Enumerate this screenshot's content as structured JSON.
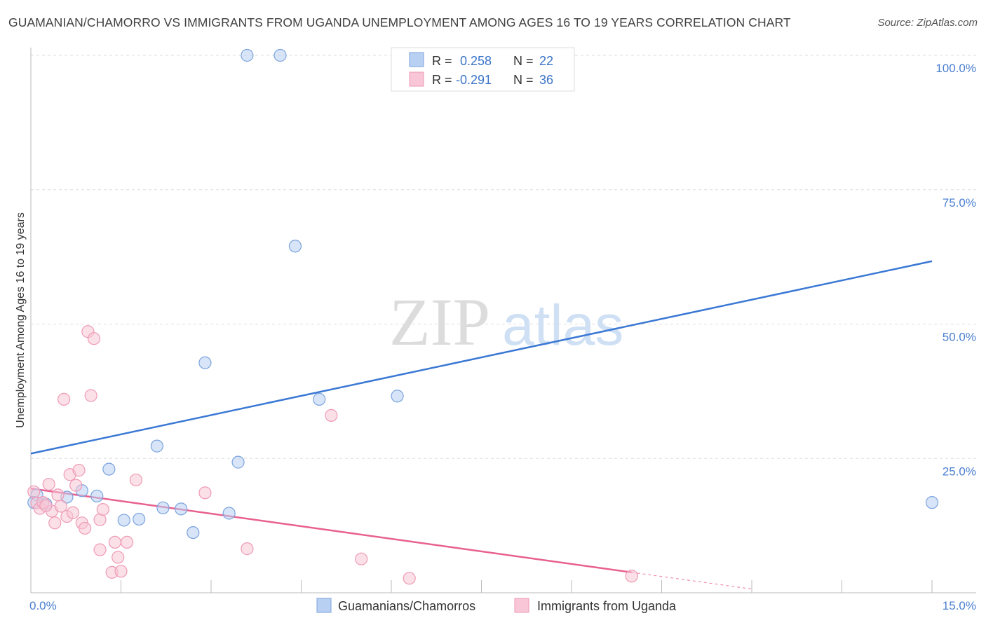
{
  "title": "GUAMANIAN/CHAMORRO VS IMMIGRANTS FROM UGANDA UNEMPLOYMENT AMONG AGES 16 TO 19 YEARS CORRELATION CHART",
  "source": "Source: ZipAtlas.com",
  "watermark": {
    "zip": "ZIP",
    "atlas": "atlas"
  },
  "colors": {
    "blue": "#3a78d4",
    "blue_fill": "#b8d0f2",
    "pink": "#e86090",
    "pink_fill": "#f8c6d6",
    "grid": "#dddddd",
    "tick_text": "#4a7fd0"
  },
  "stats_legend": [
    {
      "r_label": "R =",
      "r_value": "0.258",
      "n_label": "N =",
      "n_value": "22"
    },
    {
      "r_label": "R =",
      "r_value": "-0.291",
      "n_label": "N =",
      "n_value": "36"
    }
  ],
  "chart_data": {
    "type": "scatter",
    "xlabel": "",
    "ylabel": "Unemployment Among Ages 16 to 19 years",
    "xlim": [
      0,
      15
    ],
    "ylim": [
      0,
      100
    ],
    "x_tick_labels": [
      "0.0%",
      "15.0%"
    ],
    "y_tick_labels": [
      "25.0%",
      "50.0%",
      "75.0%",
      "100.0%"
    ],
    "y_ticks": [
      25,
      50,
      75,
      100
    ],
    "legend": [
      "Guamanians/Chamorros",
      "Immigrants from Uganda"
    ],
    "series": [
      {
        "name": "Guamanians/Chamorros",
        "color": "#3a78d4",
        "points": [
          [
            0.1,
            18.2
          ],
          [
            0.6,
            17.8
          ],
          [
            0.85,
            19.0
          ],
          [
            1.1,
            18.0
          ],
          [
            1.3,
            23.0
          ],
          [
            1.55,
            13.5
          ],
          [
            1.8,
            13.7
          ],
          [
            2.1,
            27.3
          ],
          [
            2.2,
            15.8
          ],
          [
            2.5,
            15.6
          ],
          [
            2.7,
            11.2
          ],
          [
            2.9,
            42.8
          ],
          [
            3.3,
            14.8
          ],
          [
            3.45,
            24.3
          ],
          [
            3.6,
            100.0
          ],
          [
            4.15,
            100.0
          ],
          [
            4.4,
            64.5
          ],
          [
            4.8,
            36.0
          ],
          [
            6.1,
            36.6
          ],
          [
            15.0,
            16.8
          ],
          [
            0.25,
            16.5
          ],
          [
            0.05,
            16.8
          ]
        ],
        "trend": {
          "x": [
            0,
            15
          ],
          "y": [
            25.9,
            61.7
          ]
        }
      },
      {
        "name": "Immigrants from Uganda",
        "color": "#e86090",
        "points": [
          [
            0.05,
            18.8
          ],
          [
            0.1,
            16.7
          ],
          [
            0.15,
            15.7
          ],
          [
            0.2,
            16.8
          ],
          [
            0.3,
            20.2
          ],
          [
            0.35,
            15.2
          ],
          [
            0.4,
            13.0
          ],
          [
            0.45,
            18.2
          ],
          [
            0.5,
            16.1
          ],
          [
            0.55,
            36.0
          ],
          [
            0.6,
            14.2
          ],
          [
            0.65,
            22.0
          ],
          [
            0.7,
            14.9
          ],
          [
            0.75,
            20.0
          ],
          [
            0.8,
            22.8
          ],
          [
            0.85,
            13.0
          ],
          [
            0.9,
            12.0
          ],
          [
            0.95,
            48.6
          ],
          [
            1.0,
            36.7
          ],
          [
            1.05,
            47.3
          ],
          [
            1.15,
            13.6
          ],
          [
            1.15,
            8.0
          ],
          [
            1.2,
            15.5
          ],
          [
            1.35,
            3.8
          ],
          [
            1.4,
            9.4
          ],
          [
            1.45,
            6.6
          ],
          [
            1.5,
            4.0
          ],
          [
            1.6,
            9.4
          ],
          [
            1.75,
            21.0
          ],
          [
            2.9,
            18.6
          ],
          [
            3.6,
            8.2
          ],
          [
            5.0,
            33.0
          ],
          [
            5.5,
            6.3
          ],
          [
            6.3,
            2.7
          ],
          [
            10.0,
            3.1
          ],
          [
            0.25,
            16.2
          ]
        ],
        "trend": {
          "x": [
            0,
            10.0
          ],
          "y": [
            19.4,
            3.8
          ]
        },
        "trend_dashed": {
          "x": [
            10.0,
            12.0
          ],
          "y": [
            3.8,
            0.7
          ]
        }
      }
    ]
  }
}
